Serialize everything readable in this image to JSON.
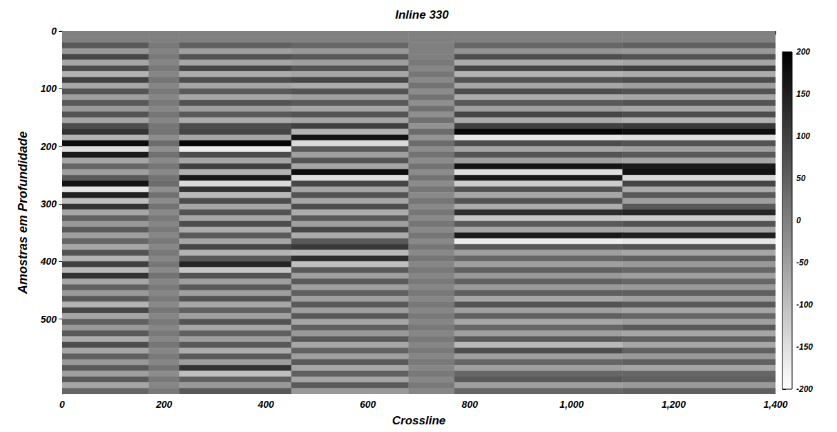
{
  "chart_data": {
    "type": "heatmap",
    "title": "Inline 330",
    "x_label": "Crossline",
    "y_label": "Amostras em Profundidade",
    "xlim": [
      0,
      1400
    ],
    "xticks": [
      0,
      200,
      400,
      600,
      800,
      1000,
      1200,
      1400
    ],
    "ylim": [
      0,
      630
    ],
    "yticks": [
      0,
      100,
      200,
      300,
      400,
      500
    ],
    "colors": [
      "#ffffff",
      "#000000"
    ],
    "clim": [
      -200,
      200
    ],
    "cticks": [
      -200,
      -150,
      -100,
      -50,
      0,
      50,
      100,
      150,
      200
    ],
    "x_edges": [
      0,
      170,
      230,
      450,
      680,
      770,
      1100,
      1400
    ],
    "y_edges": [
      0,
      10,
      20,
      30,
      40,
      50,
      60,
      70,
      80,
      90,
      100,
      110,
      120,
      130,
      140,
      150,
      160,
      170,
      180,
      190,
      200,
      210,
      220,
      230,
      240,
      250,
      260,
      270,
      280,
      290,
      300,
      310,
      320,
      330,
      340,
      350,
      360,
      370,
      380,
      390,
      400,
      410,
      420,
      430,
      440,
      450,
      460,
      470,
      480,
      490,
      500,
      510,
      520,
      530,
      540,
      550,
      560,
      570,
      580,
      590,
      600,
      610,
      620,
      630
    ],
    "z": [
      [
        0,
        0,
        0,
        0,
        0,
        0,
        0
      ],
      [
        0,
        0,
        0,
        0,
        0,
        0,
        0
      ],
      [
        60,
        10,
        50,
        40,
        0,
        40,
        50
      ],
      [
        -40,
        -5,
        -50,
        -40,
        0,
        -30,
        -40
      ],
      [
        90,
        10,
        70,
        60,
        0,
        80,
        70
      ],
      [
        -60,
        -10,
        -60,
        -50,
        10,
        -70,
        -60
      ],
      [
        80,
        10,
        90,
        70,
        -10,
        90,
        100
      ],
      [
        -80,
        -10,
        -70,
        -60,
        15,
        -80,
        -70
      ],
      [
        100,
        15,
        80,
        90,
        -15,
        70,
        80
      ],
      [
        -60,
        -10,
        -60,
        -70,
        20,
        -60,
        -50
      ],
      [
        70,
        10,
        60,
        70,
        -20,
        80,
        70
      ],
      [
        -50,
        -10,
        -60,
        -50,
        20,
        -70,
        -60
      ],
      [
        60,
        10,
        70,
        60,
        -25,
        60,
        70
      ],
      [
        -40,
        -10,
        -50,
        -60,
        25,
        -50,
        -60
      ],
      [
        70,
        15,
        60,
        70,
        -25,
        90,
        80
      ],
      [
        -60,
        -10,
        -70,
        -60,
        25,
        -70,
        -80
      ],
      [
        80,
        15,
        80,
        100,
        -30,
        100,
        110
      ],
      [
        120,
        20,
        90,
        -80,
        30,
        190,
        180
      ],
      [
        -80,
        -20,
        -60,
        170,
        -30,
        -160,
        -150
      ],
      [
        180,
        30,
        190,
        -140,
        30,
        80,
        70
      ],
      [
        -150,
        -25,
        -170,
        60,
        -20,
        -60,
        -50
      ],
      [
        160,
        25,
        80,
        -50,
        20,
        70,
        60
      ],
      [
        -60,
        -15,
        -60,
        70,
        -20,
        -50,
        -60
      ],
      [
        40,
        15,
        100,
        -60,
        20,
        170,
        160
      ],
      [
        -50,
        -15,
        -80,
        180,
        -20,
        -150,
        170
      ],
      [
        60,
        20,
        160,
        -150,
        20,
        160,
        -140
      ],
      [
        170,
        30,
        -140,
        90,
        -20,
        -120,
        90
      ],
      [
        -160,
        -25,
        120,
        -60,
        15,
        70,
        -70
      ],
      [
        150,
        25,
        -90,
        70,
        -15,
        -60,
        60
      ],
      [
        -100,
        -20,
        80,
        -60,
        15,
        70,
        -50
      ],
      [
        120,
        20,
        -60,
        80,
        -15,
        -70,
        60
      ],
      [
        -60,
        -15,
        70,
        -70,
        15,
        130,
        140
      ],
      [
        50,
        10,
        -60,
        60,
        -15,
        -110,
        -120
      ],
      [
        -40,
        -10,
        80,
        -50,
        15,
        60,
        70
      ],
      [
        60,
        10,
        -70,
        90,
        -15,
        -60,
        -60
      ],
      [
        -50,
        -10,
        60,
        -70,
        15,
        160,
        150
      ],
      [
        40,
        10,
        -60,
        60,
        -15,
        -170,
        -160
      ],
      [
        -60,
        -10,
        90,
        110,
        15,
        60,
        70
      ],
      [
        70,
        10,
        -80,
        -90,
        -15,
        -50,
        -60
      ],
      [
        -80,
        -10,
        60,
        130,
        15,
        40,
        50
      ],
      [
        100,
        15,
        140,
        -100,
        -10,
        -50,
        -40
      ],
      [
        -90,
        -15,
        -110,
        60,
        10,
        50,
        40
      ],
      [
        120,
        20,
        70,
        -50,
        -10,
        -40,
        -50
      ],
      [
        -60,
        -10,
        -50,
        60,
        10,
        50,
        40
      ],
      [
        50,
        10,
        60,
        -50,
        -10,
        -40,
        -40
      ],
      [
        -40,
        -10,
        -50,
        50,
        10,
        50,
        50
      ],
      [
        60,
        10,
        70,
        -50,
        -10,
        -60,
        -50
      ],
      [
        -80,
        -15,
        -60,
        60,
        10,
        70,
        60
      ],
      [
        90,
        15,
        50,
        -50,
        -10,
        -50,
        -60
      ],
      [
        -60,
        -10,
        -50,
        60,
        10,
        50,
        40
      ],
      [
        50,
        10,
        70,
        -60,
        -10,
        -60,
        -50
      ],
      [
        -40,
        -10,
        -60,
        50,
        10,
        40,
        60
      ],
      [
        60,
        10,
        50,
        -40,
        -10,
        -50,
        -60
      ],
      [
        -70,
        -10,
        -50,
        60,
        10,
        60,
        50
      ],
      [
        80,
        15,
        60,
        -60,
        -10,
        -90,
        -60
      ],
      [
        -60,
        -10,
        -70,
        50,
        10,
        80,
        50
      ],
      [
        50,
        10,
        60,
        -50,
        -10,
        -50,
        -40
      ],
      [
        -40,
        -10,
        -50,
        60,
        10,
        40,
        50
      ],
      [
        60,
        20,
        120,
        -60,
        -10,
        -50,
        -60
      ],
      [
        -50,
        -20,
        -100,
        50,
        10,
        40,
        40
      ],
      [
        60,
        10,
        50,
        -60,
        -10,
        60,
        50
      ],
      [
        -60,
        -10,
        -40,
        60,
        10,
        -50,
        -40
      ],
      [
        40,
        10,
        60,
        -40,
        -10,
        40,
        50
      ]
    ]
  }
}
